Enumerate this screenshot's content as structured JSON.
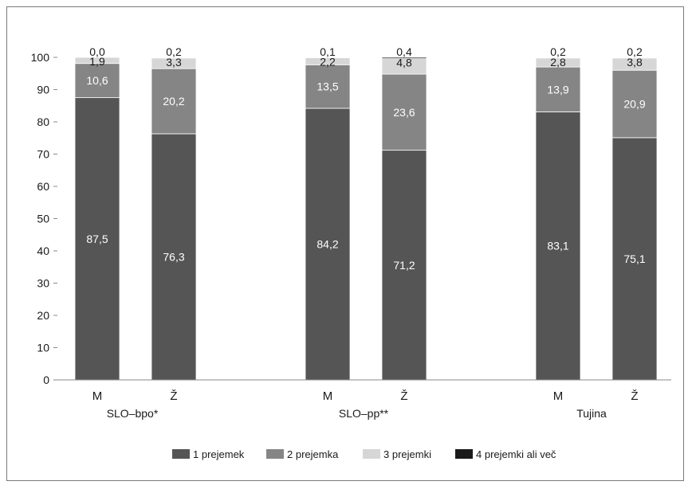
{
  "chart_data": {
    "type": "bar",
    "stacked": true,
    "ylim": [
      0,
      100
    ],
    "yticks": [
      0,
      10,
      20,
      30,
      40,
      50,
      60,
      70,
      80,
      90,
      100
    ],
    "groups": [
      {
        "name": "SLO–bpo*",
        "categories": [
          "M",
          "Ž"
        ]
      },
      {
        "name": "SLO–pp**",
        "categories": [
          "M",
          "Ž"
        ]
      },
      {
        "name": "Tujina",
        "categories": [
          "M",
          "Ž"
        ]
      }
    ],
    "bars": [
      "SLO–bpo* M",
      "SLO–bpo* Ž",
      "SLO–pp** M",
      "SLO–pp** Ž",
      "Tujina M",
      "Tujina Ž"
    ],
    "series": [
      {
        "name": "1 prejemek",
        "color": "#555555",
        "values": [
          87.5,
          76.3,
          84.2,
          71.2,
          83.1,
          75.1
        ],
        "labels": [
          "87,5",
          "76,3",
          "84,2",
          "71,2",
          "83,1",
          "75,1"
        ],
        "label_color": "#ffffff"
      },
      {
        "name": "2 prejemka",
        "color": "#858585",
        "values": [
          10.6,
          20.2,
          13.5,
          23.6,
          13.9,
          20.9
        ],
        "labels": [
          "10,6",
          "20,2",
          "13,5",
          "23,6",
          "13,9",
          "20,9"
        ],
        "label_color": "#ffffff"
      },
      {
        "name": "3 prejemki",
        "color": "#d6d6d6",
        "values": [
          1.9,
          3.3,
          2.2,
          4.8,
          2.8,
          3.8
        ],
        "labels": [
          "1,9",
          "3,3",
          "2,2",
          "4,8",
          "2,8",
          "3,8"
        ],
        "label_color": "#1a1a1a"
      },
      {
        "name": "4 prejemki ali več",
        "color": "#1a1a1a",
        "values": [
          0.0,
          0.2,
          0.1,
          0.4,
          0.2,
          0.2
        ],
        "labels": [
          "0,0",
          "0,2",
          "0,1",
          "0,4",
          "0,2",
          "0,2"
        ],
        "label_color": "#1a1a1a"
      }
    ],
    "legend_position": "bottom",
    "grid": false
  }
}
